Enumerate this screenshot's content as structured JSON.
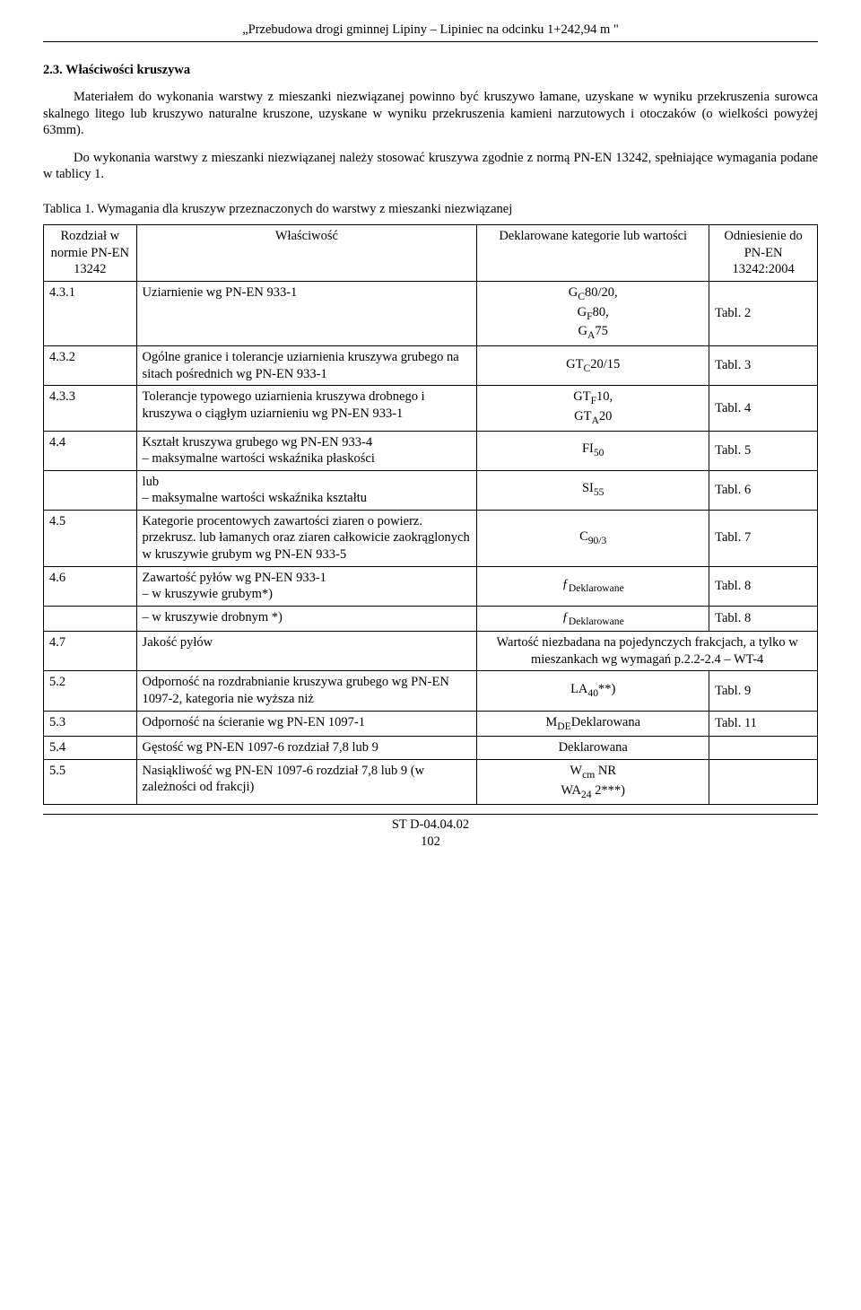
{
  "header": {
    "title": "„Przebudowa drogi gminnej Lipiny – Lipiniec na odcinku 1+242,94 m \""
  },
  "section": {
    "number_title": "2.3. Właściwości kruszywa",
    "para1": "Materiałem do wykonania warstwy z mieszanki niezwiązanej powinno być kruszywo łamane, uzyskane w wyniku przekruszenia surowca skalnego litego lub kruszywo naturalne kruszone, uzyskane w wyniku przekruszenia kamieni narzutowych i otoczaków (o wielkości powyżej 63mm).",
    "para2": "Do wykonania warstwy z mieszanki niezwiązanej należy stosować kruszywa zgodnie z normą PN-EN 13242, spełniające wymagania podane w tablicy 1."
  },
  "table": {
    "caption": "Tablica 1. Wymagania dla kruszyw przeznaczonych do warstwy z mieszanki niezwiązanej",
    "headers": {
      "col1": "Rozdział w normie PN-EN 13242",
      "col2": "Właściwość",
      "col3": "Deklarowane kategorie lub wartości",
      "col4": "Odniesienie do PN-EN 13242:2004"
    },
    "rows": [
      {
        "c1": "4.3.1",
        "c2": "Uziarnienie wg PN-EN 933-1",
        "c3": "G_C80/20,\nG_F80,\nG_A75",
        "c4": "Tabl. 2"
      },
      {
        "c1": "4.3.2",
        "c2": "Ogólne granice i tolerancje uziarnienia kruszywa grubego na sitach pośrednich wg PN-EN 933-1",
        "c3": "GT_C20/15",
        "c4": "Tabl. 3"
      },
      {
        "c1": "4.3.3",
        "c2": "Tolerancje typowego uziarnienia kruszywa drobnego i kruszywa o ciągłym uziarnieniu wg PN-EN 933-1",
        "c3": "GT_F10,\nGT_A20",
        "c4": "Tabl. 4"
      },
      {
        "c1": "4.4",
        "c2": "Kształt kruszywa grubego wg PN-EN 933-4\n– maksymalne wartości wskaźnika płaskości",
        "c3": "FI_50",
        "c4": "Tabl. 5"
      },
      {
        "c1": "",
        "c2": "lub\n– maksymalne wartości wskaźnika kształtu",
        "c3": "SI_55",
        "c4": "Tabl. 6"
      },
      {
        "c1": "4.5",
        "c2": "Kategorie procentowych zawartości ziaren o powierz. przekrusz. lub łamanych oraz ziaren całkowicie zaokrąglonych w kruszywie grubym wg PN-EN 933-5",
        "c3": "C_90/3",
        "c4": "Tabl. 7"
      },
      {
        "c1": "4.6",
        "c2": "Zawartość pyłów wg PN-EN 933-1\n– w kruszywie grubym*)",
        "c3": "ƒ_Deklarowane",
        "c4": "Tabl. 8"
      },
      {
        "c1": "",
        "c2": "– w kruszywie drobnym *)",
        "c3": "ƒ_Deklarowane",
        "c4": "Tabl. 8"
      },
      {
        "c1": "4.7",
        "c2": "Jakość pyłów",
        "c3": "Wartość niezbadana na pojedynczych frakcjach, a tylko w mieszankach wg wymagań p.2.2-2.4 – WT-4",
        "c4": "",
        "colspan34": true
      },
      {
        "c1": "5.2",
        "c2": "Odporność na rozdrabnianie kruszywa grubego wg PN-EN 1097-2, kategoria nie wyższa niż",
        "c3": "LA_40**)",
        "c4": "Tabl. 9"
      },
      {
        "c1": "5.3",
        "c2": "Odporność na ścieranie wg PN-EN 1097-1",
        "c3": "M_DE Deklarowana",
        "c4": "Tabl. 11"
      },
      {
        "c1": "5.4",
        "c2": "Gęstość wg PN-EN 1097-6 rozdział 7,8 lub 9",
        "c3": "Deklarowana",
        "c4": ""
      },
      {
        "c1": "5.5",
        "c2": "Nasiąkliwość wg PN-EN 1097-6 rozdział 7,8 lub 9 (w zależności od frakcji)",
        "c3": "W_cm NR\nWA_24 2***)",
        "c4": ""
      }
    ]
  },
  "footer": {
    "line1": "ST D-04.04.02",
    "line2": "102"
  }
}
